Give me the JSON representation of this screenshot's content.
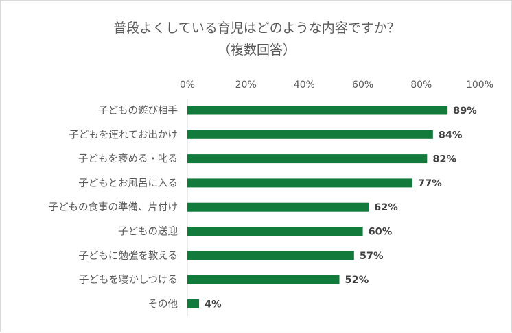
{
  "chart_data": {
    "type": "bar",
    "orientation": "horizontal",
    "title": "普段よくしている育児はどのような内容ですか？",
    "subtitle": "（複数回答）",
    "categories": [
      "子どもの遊び相手",
      "子どもを連れてお出かけ",
      "子どもを褒める・叱る",
      "子どもとお風呂に入る",
      "子どもの食事の準備、片付け",
      "子どもの送迎",
      "子どもに勉強を教える",
      "子どもを寝かしつける",
      "その他"
    ],
    "values": [
      89,
      84,
      82,
      77,
      62,
      60,
      57,
      52,
      4
    ],
    "data_labels": [
      "89%",
      "84%",
      "82%",
      "77%",
      "62%",
      "60%",
      "57%",
      "52%",
      "4%"
    ],
    "xlim": [
      0,
      100
    ],
    "ticks": [
      0,
      20,
      40,
      60,
      80,
      100
    ],
    "tick_labels": [
      "0%",
      "20%",
      "40%",
      "60%",
      "80%",
      "100%"
    ],
    "axis_position": "top",
    "grid": false,
    "legend": "none",
    "bar_color": "#127a3b"
  }
}
